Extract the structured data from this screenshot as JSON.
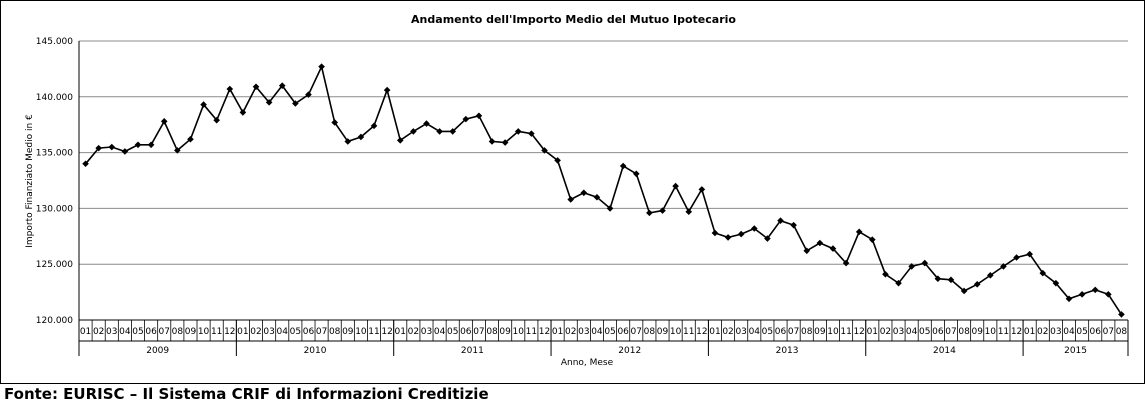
{
  "source_note": "Fonte: EURISC – Il Sistema CRIF di Informazioni Creditizie",
  "chart_data": {
    "type": "line",
    "title": "Andamento dell'Importo Medio del Mutuo Ipotecario",
    "xlabel": "Anno, Mese",
    "ylabel": "Importo Finanziato Medio in €",
    "ylim": [
      120000,
      145000
    ],
    "y_ticks": [
      "120.000",
      "125.000",
      "130.000",
      "135.000",
      "140.000",
      "145.000"
    ],
    "grid": true,
    "marker": "diamond",
    "series_color": "#000000",
    "years": [
      {
        "label": "2009",
        "months": [
          "01",
          "02",
          "03",
          "04",
          "05",
          "06",
          "07",
          "08",
          "09",
          "10",
          "11",
          "12"
        ]
      },
      {
        "label": "2010",
        "months": [
          "01",
          "02",
          "03",
          "04",
          "05",
          "06",
          "07",
          "08",
          "09",
          "10",
          "11",
          "12"
        ]
      },
      {
        "label": "2011",
        "months": [
          "01",
          "02",
          "03",
          "04",
          "05",
          "06",
          "07",
          "08",
          "09",
          "10",
          "11",
          "12"
        ]
      },
      {
        "label": "2012",
        "months": [
          "01",
          "02",
          "03",
          "04",
          "05",
          "06",
          "07",
          "08",
          "09",
          "10",
          "11",
          "12"
        ]
      },
      {
        "label": "2013",
        "months": [
          "01",
          "02",
          "03",
          "04",
          "05",
          "06",
          "07",
          "08",
          "09",
          "10",
          "11",
          "12"
        ]
      },
      {
        "label": "2014",
        "months": [
          "01",
          "02",
          "03",
          "04",
          "05",
          "06",
          "07",
          "08",
          "09",
          "10",
          "11",
          "12"
        ]
      },
      {
        "label": "2015",
        "months": [
          "01",
          "02",
          "03",
          "04",
          "05",
          "06",
          "07",
          "08"
        ]
      }
    ],
    "values": [
      134000,
      135400,
      135500,
      135100,
      135700,
      135700,
      137800,
      135200,
      136200,
      139300,
      137900,
      140700,
      138600,
      140900,
      139500,
      141000,
      139400,
      140200,
      142700,
      137700,
      136000,
      136400,
      137400,
      140600,
      136100,
      136900,
      137600,
      136900,
      136900,
      138000,
      138300,
      136000,
      135900,
      136900,
      136700,
      135200,
      134300,
      130800,
      131400,
      131000,
      130000,
      133800,
      133100,
      129600,
      129800,
      132000,
      129700,
      131700,
      127800,
      127400,
      127700,
      128200,
      127300,
      128900,
      128500,
      126200,
      126900,
      126400,
      125100,
      127900,
      127200,
      124100,
      123300,
      124800,
      125100,
      123700,
      123600,
      122600,
      123200,
      124000,
      124800,
      125600,
      125900,
      124200,
      123300,
      121900,
      122300,
      122700,
      122300,
      120500
    ]
  }
}
